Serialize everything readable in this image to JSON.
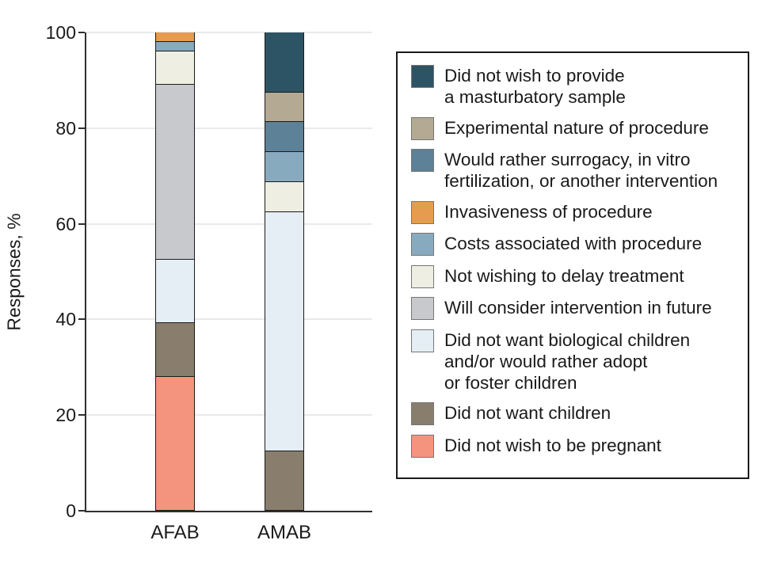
{
  "figure": {
    "ylabel": "Responses, %",
    "yticks": [
      0,
      20,
      40,
      60,
      80,
      100
    ],
    "categories": [
      "AFAB",
      "AMAB"
    ]
  },
  "colors": {
    "teal": "#2d5465",
    "tan": "#b4a993",
    "steel_dark": "#5d8196",
    "orange": "#e59c4e",
    "steel_light": "#88aabe",
    "cream": "#eeeee3",
    "gray": "#c8c9cc",
    "icy": "#e4eef4",
    "brown": "#897e6d",
    "salmon": "#f4947f"
  },
  "legend": {
    "items": [
      {
        "color": "teal",
        "lines": [
          "Did not wish to provide",
          "a masturbatory sample"
        ]
      },
      {
        "color": "tan",
        "lines": [
          "Experimental nature of procedure"
        ]
      },
      {
        "color": "steel_dark",
        "lines": [
          "Would rather surrogacy, in vitro",
          "fertilization, or another intervention"
        ]
      },
      {
        "color": "orange",
        "lines": [
          "Invasiveness of procedure"
        ]
      },
      {
        "color": "steel_light",
        "lines": [
          "Costs associated with procedure"
        ]
      },
      {
        "color": "cream",
        "lines": [
          "Not wishing to delay treatment"
        ]
      },
      {
        "color": "gray",
        "lines": [
          "Will consider intervention in future"
        ]
      },
      {
        "color": "icy",
        "lines": [
          "Did not want biological children",
          "and/or would rather adopt",
          "or foster children"
        ]
      },
      {
        "color": "brown",
        "lines": [
          "Did not want children"
        ]
      },
      {
        "color": "salmon",
        "lines": [
          "Did not wish to be pregnant"
        ]
      }
    ]
  },
  "chart_data": {
    "type": "bar",
    "stacked": true,
    "title": "",
    "xlabel": "",
    "ylabel": "Responses, %",
    "ylim": [
      0,
      100
    ],
    "yticks": [
      0,
      20,
      40,
      60,
      80,
      100
    ],
    "grid": "horizontal",
    "legend_position": "right",
    "categories": [
      "AFAB",
      "AMAB"
    ],
    "series": [
      {
        "name": "Did not wish to be pregnant",
        "color": "salmon",
        "values": [
          28.0,
          0
        ]
      },
      {
        "name": "Did not want children",
        "color": "brown",
        "values": [
          11.3,
          12.5
        ]
      },
      {
        "name": "Did not want biological children and/or would rather adopt or foster children",
        "color": "icy",
        "values": [
          13.2,
          50.0
        ]
      },
      {
        "name": "Will consider intervention in future",
        "color": "gray",
        "values": [
          36.6,
          0
        ]
      },
      {
        "name": "Not wishing to delay treatment",
        "color": "cream",
        "values": [
          6.9,
          6.25
        ]
      },
      {
        "name": "Costs associated with procedure",
        "color": "steel_light",
        "values": [
          2.0,
          6.25
        ]
      },
      {
        "name": "Invasiveness of procedure",
        "color": "orange",
        "values": [
          2.0,
          0
        ]
      },
      {
        "name": "Would rather surrogacy, in vitro fertilization, or another intervention",
        "color": "steel_dark",
        "values": [
          0,
          6.25
        ]
      },
      {
        "name": "Experimental nature of procedure",
        "color": "tan",
        "values": [
          0,
          6.25
        ]
      },
      {
        "name": "Did not wish to provide a masturbatory sample",
        "color": "teal",
        "values": [
          0,
          12.5
        ]
      }
    ]
  }
}
